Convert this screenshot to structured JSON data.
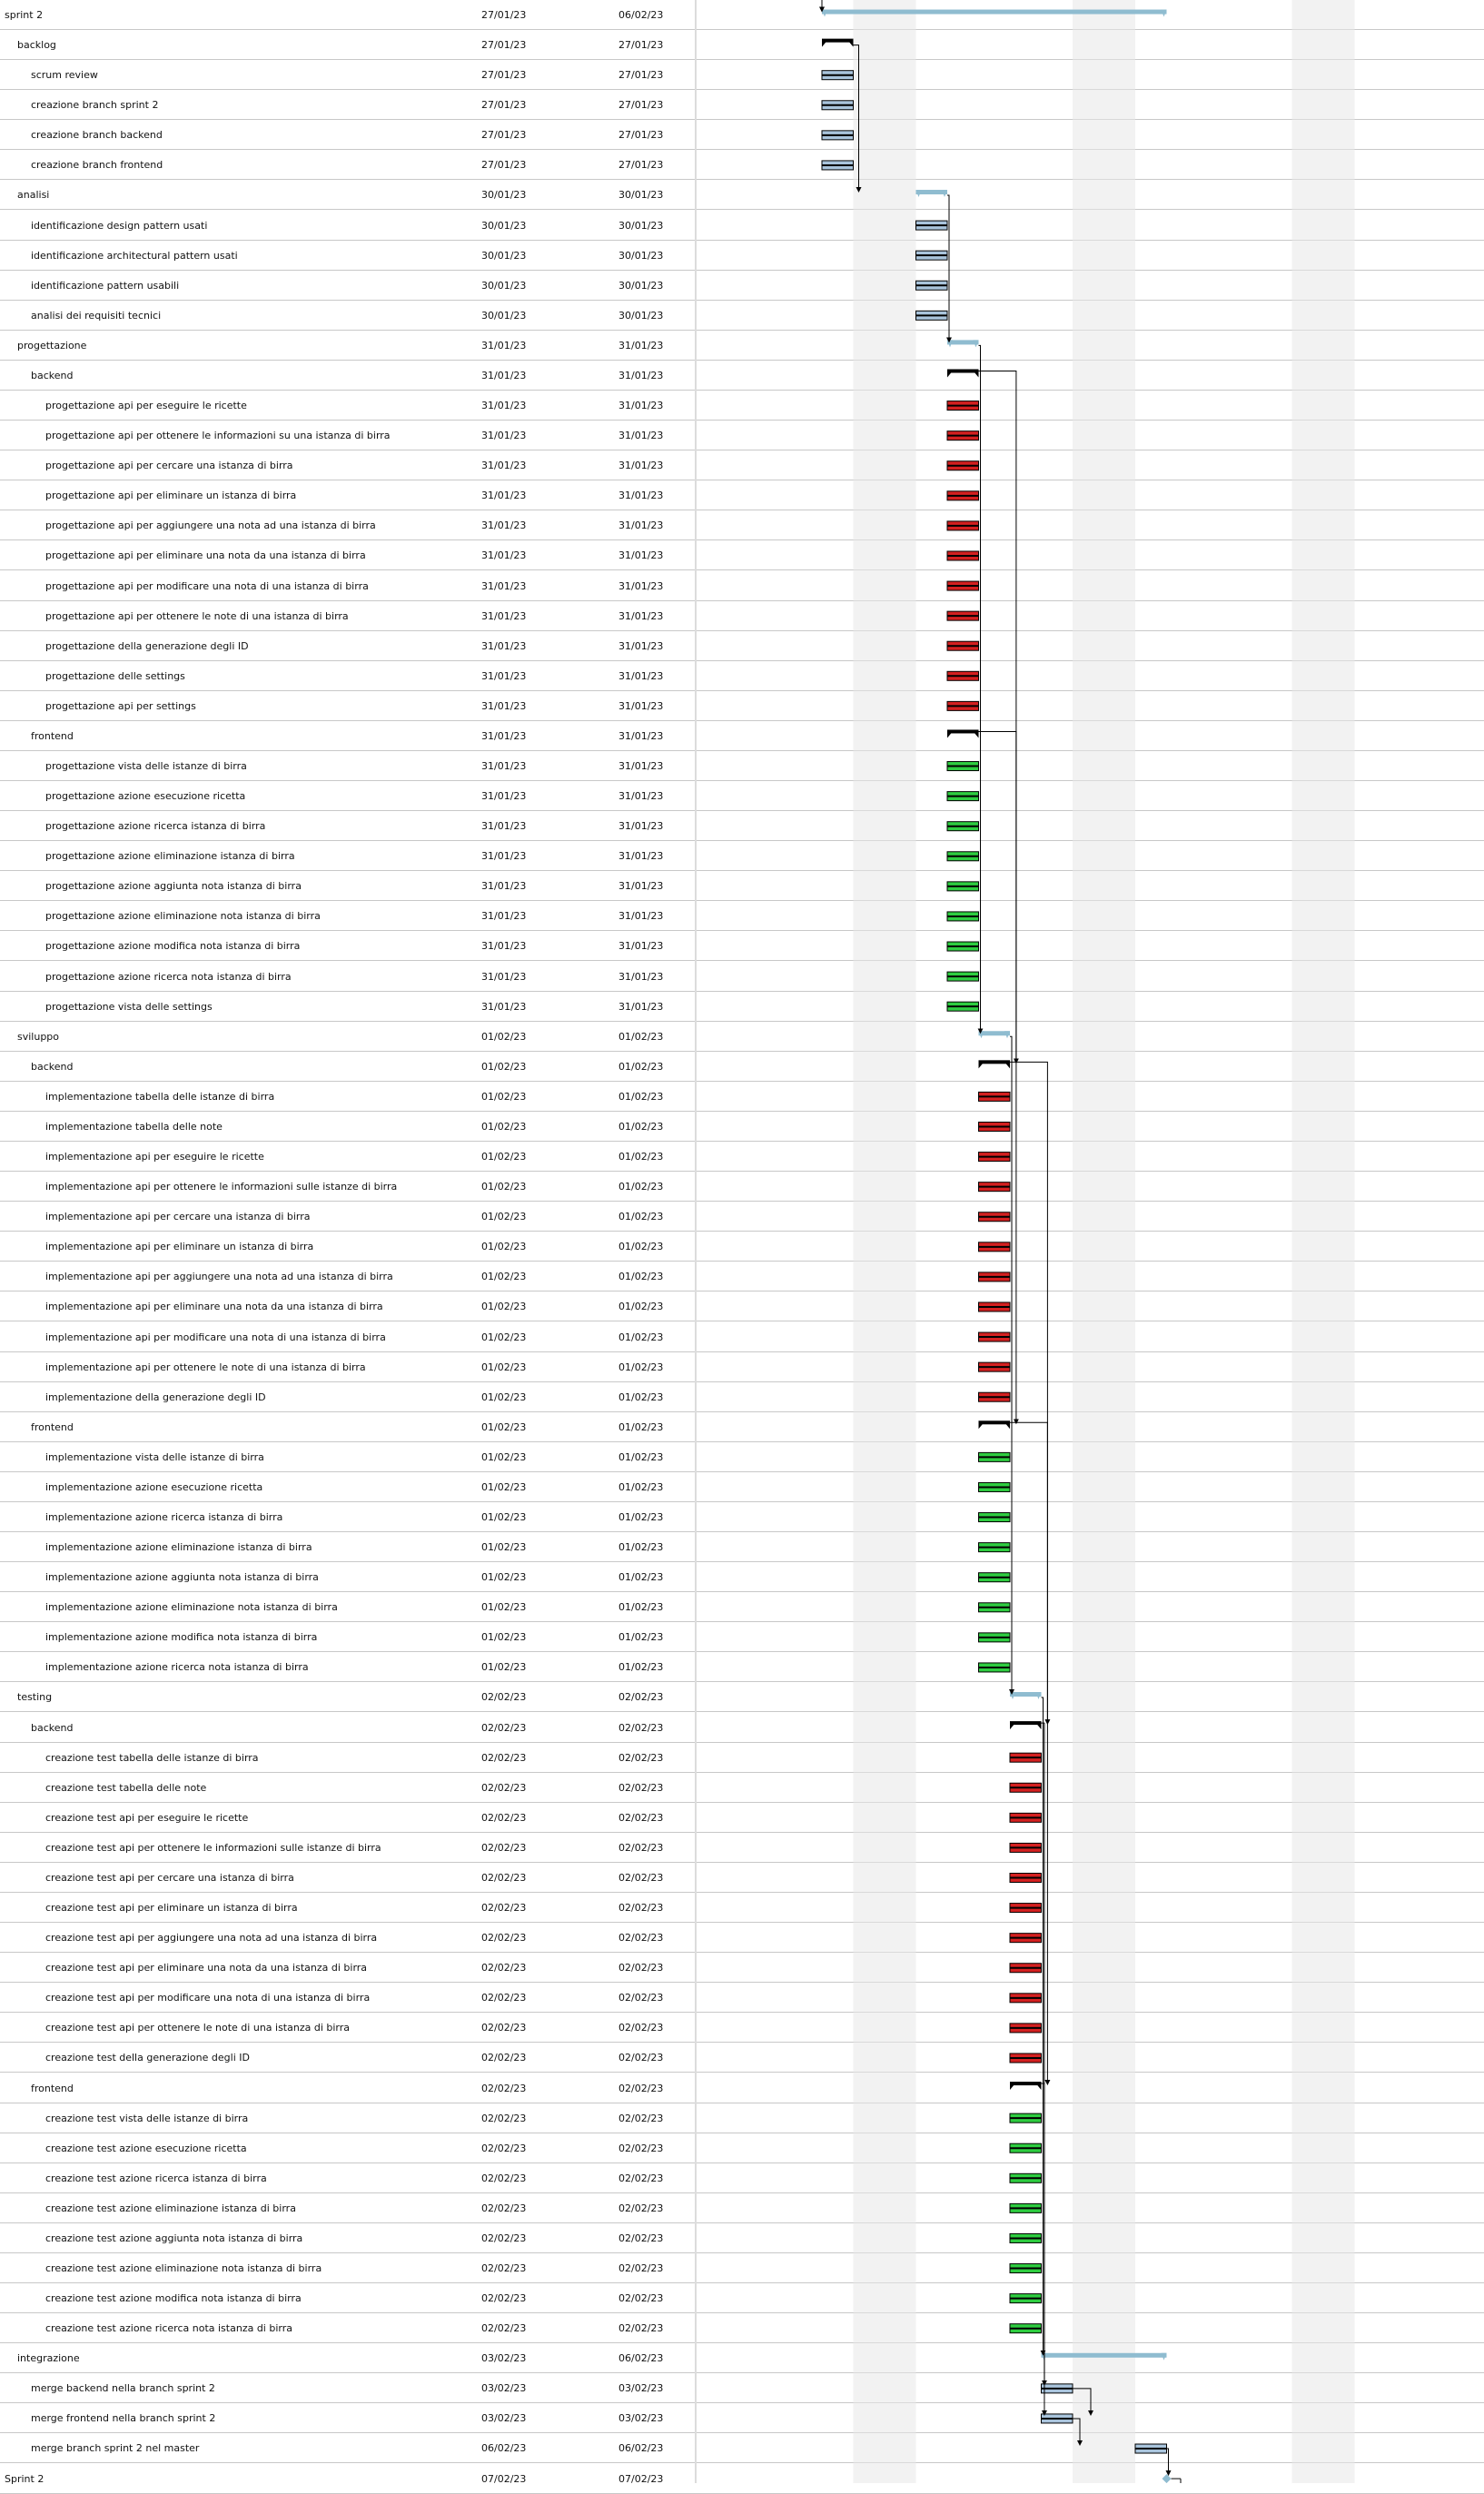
{
  "colors": {
    "summary_bar": "#8fbcd0",
    "group_bracket": "#000000",
    "general_task": "#a9c4dc",
    "backend_task": "#d32020",
    "frontend_task": "#2ecc40",
    "grid_line": "#c8c8c8",
    "weekend_band": "#e8e8e8",
    "link": "#000000"
  },
  "rows": [
    {
      "name": "sprint 2",
      "level": 0,
      "start": "27/01/23",
      "end": "06/02/23",
      "kind": "summary"
    },
    {
      "name": "backlog",
      "level": 1,
      "start": "27/01/23",
      "end": "27/01/23",
      "kind": "group"
    },
    {
      "name": "scrum review",
      "level": 2,
      "start": "27/01/23",
      "end": "27/01/23",
      "kind": "general"
    },
    {
      "name": "creazione branch sprint 2",
      "level": 2,
      "start": "27/01/23",
      "end": "27/01/23",
      "kind": "general"
    },
    {
      "name": "creazione branch backend",
      "level": 2,
      "start": "27/01/23",
      "end": "27/01/23",
      "kind": "general"
    },
    {
      "name": "creazione branch frontend",
      "level": 2,
      "start": "27/01/23",
      "end": "27/01/23",
      "kind": "general"
    },
    {
      "name": "analisi",
      "level": 1,
      "start": "30/01/23",
      "end": "30/01/23",
      "kind": "summary"
    },
    {
      "name": "identificazione design pattern usati",
      "level": 2,
      "start": "30/01/23",
      "end": "30/01/23",
      "kind": "general"
    },
    {
      "name": "identificazione architectural pattern usati",
      "level": 2,
      "start": "30/01/23",
      "end": "30/01/23",
      "kind": "general"
    },
    {
      "name": "identificazione pattern usabili",
      "level": 2,
      "start": "30/01/23",
      "end": "30/01/23",
      "kind": "general"
    },
    {
      "name": "analisi dei requisiti tecnici",
      "level": 2,
      "start": "30/01/23",
      "end": "30/01/23",
      "kind": "general"
    },
    {
      "name": "progettazione",
      "level": 1,
      "start": "31/01/23",
      "end": "31/01/23",
      "kind": "summary"
    },
    {
      "name": "backend",
      "level": 2,
      "start": "31/01/23",
      "end": "31/01/23",
      "kind": "group"
    },
    {
      "name": "progettazione api per eseguire le ricette",
      "level": 3,
      "start": "31/01/23",
      "end": "31/01/23",
      "kind": "backend"
    },
    {
      "name": "progettazione api per ottenere le informazioni su una istanza di birra",
      "level": 3,
      "start": "31/01/23",
      "end": "31/01/23",
      "kind": "backend"
    },
    {
      "name": "progettazione api per cercare una istanza di birra",
      "level": 3,
      "start": "31/01/23",
      "end": "31/01/23",
      "kind": "backend"
    },
    {
      "name": "progettazione api per eliminare un istanza di birra",
      "level": 3,
      "start": "31/01/23",
      "end": "31/01/23",
      "kind": "backend"
    },
    {
      "name": "progettazione api per aggiungere una nota ad una istanza di birra",
      "level": 3,
      "start": "31/01/23",
      "end": "31/01/23",
      "kind": "backend"
    },
    {
      "name": "progettazione api per eliminare una nota da una istanza di birra",
      "level": 3,
      "start": "31/01/23",
      "end": "31/01/23",
      "kind": "backend"
    },
    {
      "name": "progettazione api per modificare una nota di una istanza di birra",
      "level": 3,
      "start": "31/01/23",
      "end": "31/01/23",
      "kind": "backend"
    },
    {
      "name": "progettazione api per ottenere le note di una istanza di birra",
      "level": 3,
      "start": "31/01/23",
      "end": "31/01/23",
      "kind": "backend"
    },
    {
      "name": "progettazione della generazione degli ID",
      "level": 3,
      "start": "31/01/23",
      "end": "31/01/23",
      "kind": "backend"
    },
    {
      "name": "progettazione delle settings",
      "level": 3,
      "start": "31/01/23",
      "end": "31/01/23",
      "kind": "backend"
    },
    {
      "name": "progettazione api per settings",
      "level": 3,
      "start": "31/01/23",
      "end": "31/01/23",
      "kind": "backend"
    },
    {
      "name": "frontend",
      "level": 2,
      "start": "31/01/23",
      "end": "31/01/23",
      "kind": "group"
    },
    {
      "name": "progettazione vista delle istanze di birra",
      "level": 3,
      "start": "31/01/23",
      "end": "31/01/23",
      "kind": "frontend"
    },
    {
      "name": "progettazione azione esecuzione ricetta",
      "level": 3,
      "start": "31/01/23",
      "end": "31/01/23",
      "kind": "frontend"
    },
    {
      "name": "progettazione azione ricerca istanza di birra",
      "level": 3,
      "start": "31/01/23",
      "end": "31/01/23",
      "kind": "frontend"
    },
    {
      "name": "progettazione azione eliminazione istanza di birra",
      "level": 3,
      "start": "31/01/23",
      "end": "31/01/23",
      "kind": "frontend"
    },
    {
      "name": "progettazione azione aggiunta nota istanza di birra",
      "level": 3,
      "start": "31/01/23",
      "end": "31/01/23",
      "kind": "frontend"
    },
    {
      "name": "progettazione azione eliminazione nota istanza di birra",
      "level": 3,
      "start": "31/01/23",
      "end": "31/01/23",
      "kind": "frontend"
    },
    {
      "name": "progettazione azione modifica nota istanza di birra",
      "level": 3,
      "start": "31/01/23",
      "end": "31/01/23",
      "kind": "frontend"
    },
    {
      "name": "progettazione azione ricerca nota istanza di birra",
      "level": 3,
      "start": "31/01/23",
      "end": "31/01/23",
      "kind": "frontend"
    },
    {
      "name": "progettazione vista delle settings",
      "level": 3,
      "start": "31/01/23",
      "end": "31/01/23",
      "kind": "frontend"
    },
    {
      "name": "sviluppo",
      "level": 1,
      "start": "01/02/23",
      "end": "01/02/23",
      "kind": "summary"
    },
    {
      "name": "backend",
      "level": 2,
      "start": "01/02/23",
      "end": "01/02/23",
      "kind": "group"
    },
    {
      "name": "implementazione tabella delle istanze di birra",
      "level": 3,
      "start": "01/02/23",
      "end": "01/02/23",
      "kind": "backend"
    },
    {
      "name": "implementazione tabella delle note",
      "level": 3,
      "start": "01/02/23",
      "end": "01/02/23",
      "kind": "backend"
    },
    {
      "name": "implementazione api per eseguire le ricette",
      "level": 3,
      "start": "01/02/23",
      "end": "01/02/23",
      "kind": "backend"
    },
    {
      "name": "implementazione api per ottenere le informazioni sulle istanze di birra",
      "level": 3,
      "start": "01/02/23",
      "end": "01/02/23",
      "kind": "backend"
    },
    {
      "name": "implementazione api per cercare una istanza di birra",
      "level": 3,
      "start": "01/02/23",
      "end": "01/02/23",
      "kind": "backend"
    },
    {
      "name": "implementazione api per eliminare un istanza di birra",
      "level": 3,
      "start": "01/02/23",
      "end": "01/02/23",
      "kind": "backend"
    },
    {
      "name": "implementazione api per aggiungere una nota ad una istanza di birra",
      "level": 3,
      "start": "01/02/23",
      "end": "01/02/23",
      "kind": "backend"
    },
    {
      "name": "implementazione api per eliminare una nota da una istanza di birra",
      "level": 3,
      "start": "01/02/23",
      "end": "01/02/23",
      "kind": "backend"
    },
    {
      "name": "implementazione api per modificare una nota di una istanza di birra",
      "level": 3,
      "start": "01/02/23",
      "end": "01/02/23",
      "kind": "backend"
    },
    {
      "name": "implementazione api per ottenere le note di una istanza di birra",
      "level": 3,
      "start": "01/02/23",
      "end": "01/02/23",
      "kind": "backend"
    },
    {
      "name": "implementazione della generazione degli ID",
      "level": 3,
      "start": "01/02/23",
      "end": "01/02/23",
      "kind": "backend"
    },
    {
      "name": "frontend",
      "level": 2,
      "start": "01/02/23",
      "end": "01/02/23",
      "kind": "group"
    },
    {
      "name": "implementazione vista delle istanze di birra",
      "level": 3,
      "start": "01/02/23",
      "end": "01/02/23",
      "kind": "frontend"
    },
    {
      "name": "implementazione azione esecuzione ricetta",
      "level": 3,
      "start": "01/02/23",
      "end": "01/02/23",
      "kind": "frontend"
    },
    {
      "name": "implementazione azione ricerca istanza di birra",
      "level": 3,
      "start": "01/02/23",
      "end": "01/02/23",
      "kind": "frontend"
    },
    {
      "name": "implementazione azione eliminazione istanza di birra",
      "level": 3,
      "start": "01/02/23",
      "end": "01/02/23",
      "kind": "frontend"
    },
    {
      "name": "implementazione azione aggiunta nota istanza di birra",
      "level": 3,
      "start": "01/02/23",
      "end": "01/02/23",
      "kind": "frontend"
    },
    {
      "name": "implementazione azione eliminazione nota istanza di birra",
      "level": 3,
      "start": "01/02/23",
      "end": "01/02/23",
      "kind": "frontend"
    },
    {
      "name": "implementazione azione modifica nota istanza di birra",
      "level": 3,
      "start": "01/02/23",
      "end": "01/02/23",
      "kind": "frontend"
    },
    {
      "name": "implementazione azione ricerca nota istanza di birra",
      "level": 3,
      "start": "01/02/23",
      "end": "01/02/23",
      "kind": "frontend"
    },
    {
      "name": "testing",
      "level": 1,
      "start": "02/02/23",
      "end": "02/02/23",
      "kind": "summary"
    },
    {
      "name": "backend",
      "level": 2,
      "start": "02/02/23",
      "end": "02/02/23",
      "kind": "group"
    },
    {
      "name": "creazione test tabella delle istanze di birra",
      "level": 3,
      "start": "02/02/23",
      "end": "02/02/23",
      "kind": "backend"
    },
    {
      "name": "creazione test tabella delle note",
      "level": 3,
      "start": "02/02/23",
      "end": "02/02/23",
      "kind": "backend"
    },
    {
      "name": "creazione test api per eseguire le ricette",
      "level": 3,
      "start": "02/02/23",
      "end": "02/02/23",
      "kind": "backend"
    },
    {
      "name": "creazione test api per ottenere le informazioni sulle istanze di birra",
      "level": 3,
      "start": "02/02/23",
      "end": "02/02/23",
      "kind": "backend"
    },
    {
      "name": "creazione test api per cercare una istanza di birra",
      "level": 3,
      "start": "02/02/23",
      "end": "02/02/23",
      "kind": "backend"
    },
    {
      "name": "creazione test api per eliminare un istanza di birra",
      "level": 3,
      "start": "02/02/23",
      "end": "02/02/23",
      "kind": "backend"
    },
    {
      "name": "creazione test api per aggiungere una nota ad una istanza di birra",
      "level": 3,
      "start": "02/02/23",
      "end": "02/02/23",
      "kind": "backend"
    },
    {
      "name": "creazione test api per eliminare una nota da una istanza di birra",
      "level": 3,
      "start": "02/02/23",
      "end": "02/02/23",
      "kind": "backend"
    },
    {
      "name": "creazione test api per modificare una nota di una istanza di birra",
      "level": 3,
      "start": "02/02/23",
      "end": "02/02/23",
      "kind": "backend"
    },
    {
      "name": "creazione test api per ottenere le note di una istanza di birra",
      "level": 3,
      "start": "02/02/23",
      "end": "02/02/23",
      "kind": "backend"
    },
    {
      "name": "creazione test della generazione degli ID",
      "level": 3,
      "start": "02/02/23",
      "end": "02/02/23",
      "kind": "backend"
    },
    {
      "name": "frontend",
      "level": 2,
      "start": "02/02/23",
      "end": "02/02/23",
      "kind": "group"
    },
    {
      "name": "creazione test vista delle istanze di birra",
      "level": 3,
      "start": "02/02/23",
      "end": "02/02/23",
      "kind": "frontend"
    },
    {
      "name": "creazione test azione esecuzione ricetta",
      "level": 3,
      "start": "02/02/23",
      "end": "02/02/23",
      "kind": "frontend"
    },
    {
      "name": "creazione test azione ricerca istanza di birra",
      "level": 3,
      "start": "02/02/23",
      "end": "02/02/23",
      "kind": "frontend"
    },
    {
      "name": "creazione test azione eliminazione istanza di birra",
      "level": 3,
      "start": "02/02/23",
      "end": "02/02/23",
      "kind": "frontend"
    },
    {
      "name": "creazione test azione aggiunta nota istanza di birra",
      "level": 3,
      "start": "02/02/23",
      "end": "02/02/23",
      "kind": "frontend"
    },
    {
      "name": "creazione test azione eliminazione nota istanza di birra",
      "level": 3,
      "start": "02/02/23",
      "end": "02/02/23",
      "kind": "frontend"
    },
    {
      "name": "creazione test azione modifica nota istanza di birra",
      "level": 3,
      "start": "02/02/23",
      "end": "02/02/23",
      "kind": "frontend"
    },
    {
      "name": "creazione test azione ricerca nota istanza di birra",
      "level": 3,
      "start": "02/02/23",
      "end": "02/02/23",
      "kind": "frontend"
    },
    {
      "name": "integrazione",
      "level": 1,
      "start": "03/02/23",
      "end": "06/02/23",
      "kind": "summary"
    },
    {
      "name": "merge backend nella branch sprint 2",
      "level": 2,
      "start": "03/02/23",
      "end": "03/02/23",
      "kind": "general"
    },
    {
      "name": "merge frontend nella branch sprint 2",
      "level": 2,
      "start": "03/02/23",
      "end": "03/02/23",
      "kind": "general"
    },
    {
      "name": "merge branch sprint 2 nel master",
      "level": 2,
      "start": "06/02/23",
      "end": "06/02/23",
      "kind": "general"
    },
    {
      "name": "Sprint 2",
      "level": 0,
      "start": "07/02/23",
      "end": "07/02/23",
      "kind": "milestone"
    }
  ]
}
